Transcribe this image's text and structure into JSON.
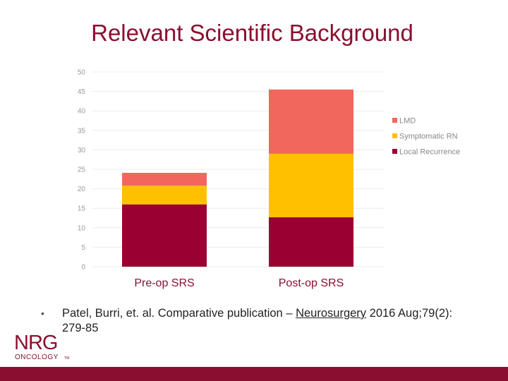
{
  "slide": {
    "title": "Relevant Scientific Background",
    "bullet": "•",
    "citation_part1": "Patel, Burri, et. al. Comparative publication – ",
    "citation_journal": "Neurosurgery",
    "citation_part2": " 2016 Aug;79(2): 279-85"
  },
  "logo": {
    "top": "NRG",
    "bottom": "ONCOLOGY",
    "tm": "TM",
    "color": "#8a0f2e"
  },
  "colors": {
    "accent": "#8a0f2e",
    "bar_bottom": "#9b0032",
    "bar_middle": "#ffc000",
    "bar_top": "#f1675e",
    "category_label": "#8a0f2e",
    "tick": "#999999",
    "grid": "#ececec",
    "bottom_bar": "#8a0f2e"
  },
  "chart_data": {
    "type": "bar",
    "stacked": true,
    "categories": [
      "Pre-op SRS",
      "Post-op SRS"
    ],
    "series": [
      {
        "name": "Local Recurrence",
        "values": [
          16,
          12.7
        ],
        "color": "#9b0032"
      },
      {
        "name": "Symptomatic RN",
        "values": [
          4.8,
          16.3
        ],
        "color": "#ffc000"
      },
      {
        "name": "LMD",
        "values": [
          3.3,
          16.5
        ],
        "color": "#f1675e"
      }
    ],
    "ylim": [
      0,
      50
    ],
    "yticks": [
      "0",
      "5",
      "10",
      "15",
      "20",
      "25",
      "30",
      "35",
      "40",
      "45",
      "50"
    ],
    "grid": true,
    "legend": "right"
  }
}
